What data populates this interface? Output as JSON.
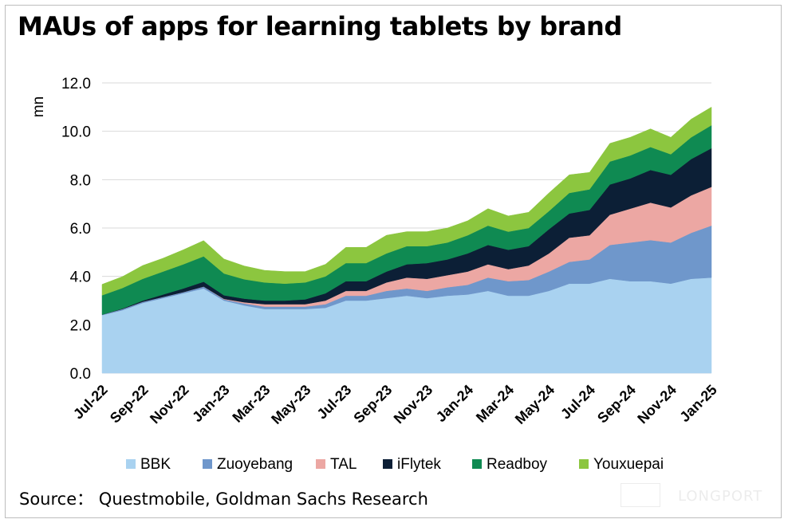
{
  "title": "MAUs of apps for learning tablets by brand",
  "source": "Source： Questmobile, Goldman Sachs Research",
  "watermark": "LONGPORT",
  "chart_data": {
    "type": "area",
    "stacked": true,
    "title": "MAUs of apps for learning tablets by brand",
    "ylabel": "mn",
    "xlabel": "",
    "ylim": [
      0,
      12
    ],
    "yticks": [
      "0.0",
      "2.0",
      "4.0",
      "6.0",
      "8.0",
      "10.0",
      "12.0"
    ],
    "grid": true,
    "legend_position": "bottom",
    "x": [
      "Jul-22",
      "Aug-22",
      "Sep-22",
      "Oct-22",
      "Nov-22",
      "Dec-22",
      "Jan-23",
      "Feb-23",
      "Mar-23",
      "Apr-23",
      "May-23",
      "Jun-23",
      "Jul-23",
      "Aug-23",
      "Sep-23",
      "Oct-23",
      "Nov-23",
      "Dec-23",
      "Jan-24",
      "Feb-24",
      "Mar-24",
      "Apr-24",
      "May-24",
      "Jun-24",
      "Jul-24",
      "Aug-24",
      "Sep-24",
      "Oct-24",
      "Nov-24",
      "Dec-24",
      "Jan-25"
    ],
    "xtick_labels": [
      "Jul-22",
      "Sep-22",
      "Nov-22",
      "Jan-23",
      "Mar-23",
      "May-23",
      "Jul-23",
      "Sep-23",
      "Nov-23",
      "Jan-24",
      "Mar-24",
      "May-24",
      "Jul-24",
      "Sep-24",
      "Nov-24",
      "Jan-25"
    ],
    "series": [
      {
        "name": "BBK",
        "color": "#a9d2f0",
        "values": [
          2.4,
          2.6,
          2.9,
          3.1,
          3.3,
          3.5,
          3.0,
          2.8,
          2.65,
          2.65,
          2.65,
          2.7,
          3.0,
          3.0,
          3.1,
          3.2,
          3.1,
          3.2,
          3.25,
          3.4,
          3.2,
          3.2,
          3.4,
          3.7,
          3.7,
          3.9,
          3.8,
          3.8,
          3.7,
          3.9,
          3.95
        ]
      },
      {
        "name": "Zuoyebang",
        "color": "#6f97cb",
        "values": [
          0.02,
          0.05,
          0.05,
          0.05,
          0.05,
          0.08,
          0.05,
          0.08,
          0.1,
          0.1,
          0.1,
          0.15,
          0.2,
          0.2,
          0.3,
          0.3,
          0.3,
          0.35,
          0.4,
          0.55,
          0.6,
          0.65,
          0.8,
          0.9,
          1.0,
          1.4,
          1.6,
          1.7,
          1.7,
          1.9,
          2.15
        ]
      },
      {
        "name": "TAL",
        "color": "#eca7a3",
        "values": [
          0.0,
          0.0,
          0.0,
          0.0,
          0.0,
          0.0,
          0.02,
          0.05,
          0.1,
          0.1,
          0.1,
          0.15,
          0.2,
          0.2,
          0.35,
          0.45,
          0.5,
          0.5,
          0.55,
          0.55,
          0.5,
          0.6,
          0.75,
          1.0,
          1.0,
          1.25,
          1.4,
          1.55,
          1.45,
          1.55,
          1.6
        ]
      },
      {
        "name": "iFlytek",
        "color": "#0c1f36",
        "values": [
          0.0,
          0.02,
          0.05,
          0.1,
          0.15,
          0.2,
          0.15,
          0.15,
          0.15,
          0.15,
          0.2,
          0.3,
          0.4,
          0.4,
          0.45,
          0.55,
          0.65,
          0.65,
          0.75,
          0.8,
          0.8,
          0.8,
          1.0,
          1.0,
          1.05,
          1.25,
          1.25,
          1.35,
          1.35,
          1.5,
          1.6
        ]
      },
      {
        "name": "Readboy",
        "color": "#0f8a52",
        "values": [
          0.8,
          0.85,
          0.9,
          0.95,
          1.0,
          1.05,
          0.9,
          0.8,
          0.75,
          0.7,
          0.7,
          0.7,
          0.75,
          0.75,
          0.75,
          0.75,
          0.7,
          0.7,
          0.75,
          0.8,
          0.75,
          0.75,
          0.75,
          0.85,
          0.85,
          0.95,
          0.95,
          0.95,
          0.85,
          0.9,
          0.95
        ]
      },
      {
        "name": "Youxuepai",
        "color": "#8cc63f",
        "values": [
          0.45,
          0.47,
          0.55,
          0.55,
          0.6,
          0.65,
          0.6,
          0.55,
          0.5,
          0.5,
          0.45,
          0.5,
          0.65,
          0.65,
          0.75,
          0.6,
          0.6,
          0.6,
          0.6,
          0.7,
          0.65,
          0.65,
          0.75,
          0.75,
          0.7,
          0.75,
          0.75,
          0.75,
          0.7,
          0.75,
          0.75
        ]
      }
    ]
  }
}
